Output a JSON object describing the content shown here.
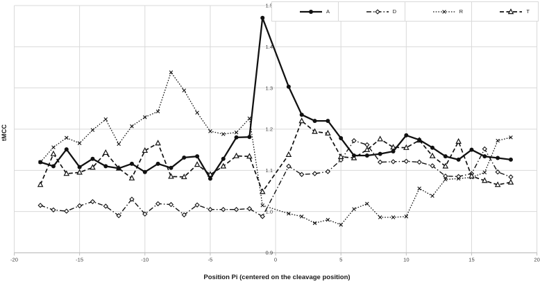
{
  "figure": {
    "ylabel": "tMCC",
    "xlabel": "Position Pi (centered on the cleavage position)"
  },
  "chart_data": {
    "type": "line",
    "title": "",
    "xlabel": "Position Pi (centered on the cleavage position)",
    "ylabel": "tMCC",
    "xlim": [
      -20,
      20
    ],
    "ylim": [
      0.9,
      1.5
    ],
    "x_ticks": [
      -20,
      -15,
      -10,
      -5,
      0,
      5,
      10,
      15,
      20
    ],
    "y_ticks": [
      0.9,
      1.0,
      1.1,
      1.2,
      1.3,
      1.4,
      1.5
    ],
    "grid": true,
    "legend_position": "top-right",
    "axis_color": "#bfbfbf",
    "grid_color": "#d9d9d9",
    "line_color": "#111111",
    "x": [
      -18,
      -17,
      -16,
      -15,
      -14,
      -13,
      -12,
      -11,
      -10,
      -9,
      -8,
      -7,
      -6,
      -5,
      -4,
      -3,
      -2,
      -1,
      1,
      2,
      3,
      4,
      5,
      6,
      7,
      8,
      9,
      10,
      11,
      12,
      13,
      14,
      15,
      16,
      17,
      18
    ],
    "series": [
      {
        "name": "R",
        "line": "dotted",
        "marker": "x-cross",
        "values": [
          1.12,
          1.156,
          1.179,
          1.166,
          1.198,
          1.224,
          1.164,
          1.207,
          1.229,
          1.243,
          1.338,
          1.294,
          1.24,
          1.195,
          1.188,
          1.192,
          1.226,
          1.015,
          0.995,
          0.988,
          0.972,
          0.98,
          0.968,
          1.006,
          1.019,
          0.986,
          0.986,
          0.988,
          1.056,
          1.038,
          1.078,
          1.08,
          1.083,
          1.095,
          1.172,
          1.18
        ]
      },
      {
        "name": "D",
        "line": "dash-dot",
        "marker": "open-diamond",
        "values": [
          1.015,
          1.004,
          1.001,
          1.014,
          1.024,
          1.013,
          0.99,
          1.03,
          0.994,
          1.019,
          1.017,
          0.992,
          1.016,
          1.005,
          1.005,
          1.005,
          1.007,
          0.988,
          1.11,
          1.09,
          1.092,
          1.097,
          1.125,
          1.172,
          1.162,
          1.12,
          1.121,
          1.122,
          1.12,
          1.111,
          1.086,
          1.085,
          1.092,
          1.152,
          1.096,
          1.084
        ]
      },
      {
        "name": "T",
        "line": "dashed",
        "marker": "open-triangle",
        "values": [
          1.065,
          1.14,
          1.092,
          1.095,
          1.107,
          1.143,
          1.105,
          1.081,
          1.148,
          1.166,
          1.085,
          1.084,
          1.114,
          1.09,
          1.11,
          1.135,
          1.134,
          1.048,
          1.138,
          1.22,
          1.194,
          1.19,
          1.133,
          1.13,
          1.15,
          1.176,
          1.156,
          1.155,
          1.173,
          1.135,
          1.11,
          1.17,
          1.086,
          1.075,
          1.065,
          1.071
        ]
      },
      {
        "name": "A",
        "line": "solid",
        "marker": "filled-circle",
        "values": [
          1.12,
          1.11,
          1.151,
          1.108,
          1.128,
          1.11,
          1.105,
          1.116,
          1.096,
          1.116,
          1.106,
          1.131,
          1.134,
          1.08,
          1.128,
          1.18,
          1.181,
          1.47,
          1.303,
          1.235,
          1.22,
          1.22,
          1.178,
          1.136,
          1.136,
          1.14,
          1.146,
          1.185,
          1.174,
          1.155,
          1.134,
          1.126,
          1.15,
          1.134,
          1.13,
          1.126
        ]
      }
    ],
    "legend_order": [
      "A",
      "D",
      "R",
      "T"
    ]
  }
}
